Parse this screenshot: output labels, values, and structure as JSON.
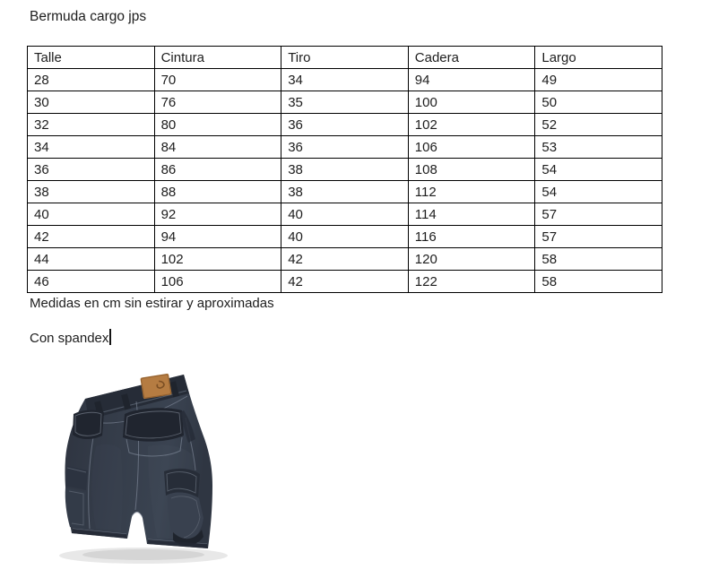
{
  "doc": {
    "title": "Bermuda cargo jps",
    "note_measures": "Medidas en cm sin estirar y aproximadas",
    "note_material": "Con spandex"
  },
  "table": {
    "headers": [
      "Talle",
      "Cintura",
      "Tiro",
      "Cadera",
      "Largo"
    ],
    "rows": [
      [
        "28",
        "70",
        "34",
        "94",
        "49"
      ],
      [
        "30",
        "76",
        "35",
        "100",
        "50"
      ],
      [
        "32",
        "80",
        "36",
        "102",
        "52"
      ],
      [
        "34",
        "84",
        "36",
        "106",
        "53"
      ],
      [
        "36",
        "86",
        "38",
        "108",
        "54"
      ],
      [
        "38",
        "88",
        "38",
        "112",
        "54"
      ],
      [
        "40",
        "92",
        "40",
        "114",
        "57"
      ],
      [
        "42",
        "94",
        "40",
        "116",
        "57"
      ],
      [
        "44",
        "102",
        "42",
        "120",
        "58"
      ],
      [
        "46",
        "106",
        "42",
        "122",
        "58"
      ]
    ]
  },
  "cursor": {
    "visible": true,
    "position_after": "Con spandex"
  },
  "image": {
    "description": "back view of dark navy cargo bermuda shorts with brown leather brand patch",
    "colors": {
      "fabric": "#363e4b",
      "fabric_dark": "#20252f",
      "waistband": "#262c37",
      "stitch": "#7b8494",
      "patch": "#b57c42",
      "patch_mark": "#7c4f24",
      "shadow": "#b9b9b9"
    }
  }
}
